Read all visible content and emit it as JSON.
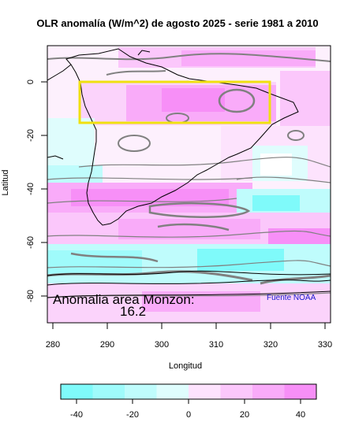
{
  "title": "OLR anomalía (W/m^2) de agosto 2025 - serie 1981 a 2010",
  "ylabel": "Latitud",
  "xlabel": "Longitud",
  "map": {
    "lon_ticks": [
      "280",
      "290",
      "300",
      "310",
      "320",
      "330"
    ],
    "lat_ticks": [
      "0",
      "-20",
      "-40",
      "-60",
      "-80"
    ],
    "lon_range": [
      279,
      331
    ],
    "lat_range": [
      -91,
      14
    ],
    "region_box": {
      "lon": [
        285,
        320
      ],
      "lat": [
        -15,
        0
      ],
      "color": "#f0e010"
    },
    "colorbar": {
      "ticks": [
        "-40",
        "-20",
        "0",
        "20",
        "40"
      ],
      "range": [
        -45,
        45
      ],
      "colors": [
        "#7ffafa",
        "#9ffbfb",
        "#bffcfc",
        "#dffdfd",
        "#fde3fd",
        "#fbc7fb",
        "#f9abf9",
        "#f78ff7"
      ]
    },
    "anomaly_label": "Anomalia area Monzon:",
    "anomaly_value": "16.2",
    "credit": "Fuente NOAA"
  }
}
